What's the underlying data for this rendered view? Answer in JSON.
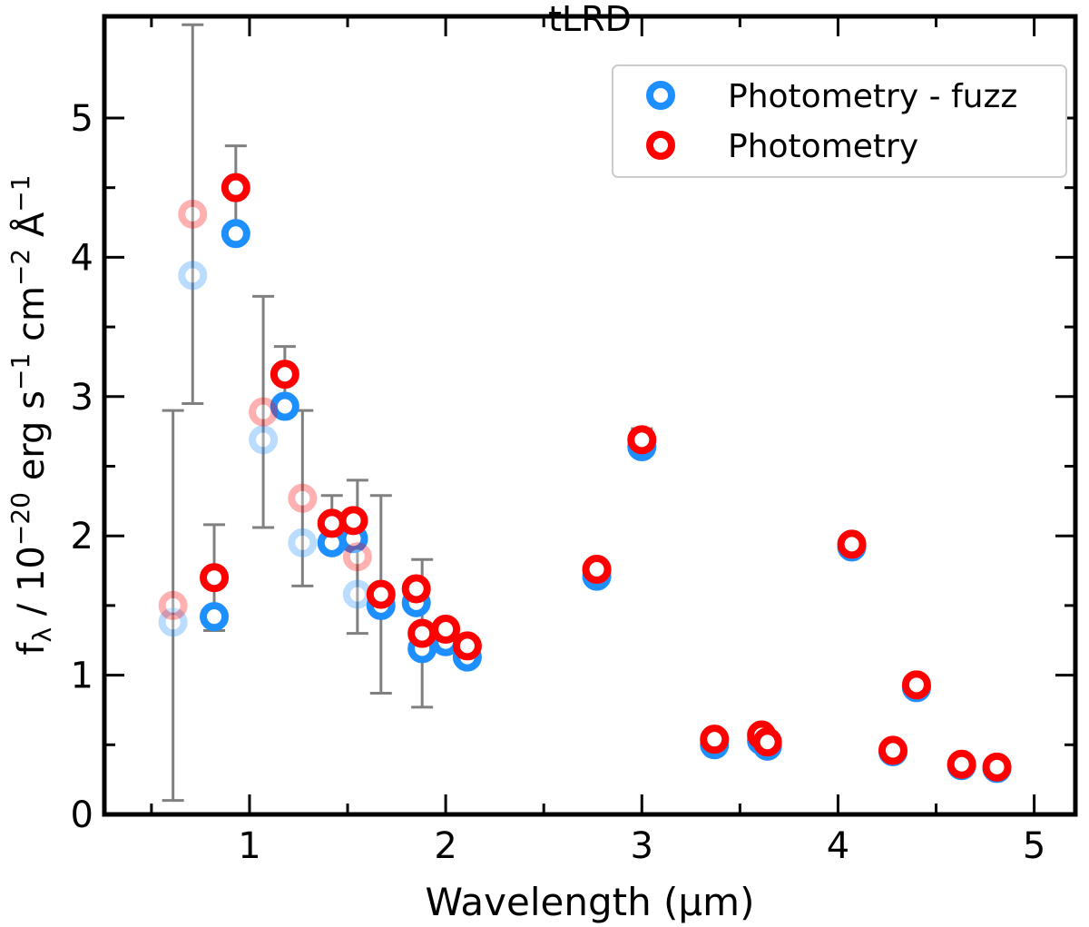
{
  "chart_data": {
    "type": "scatter",
    "title": "tLRD",
    "xlabel": "Wavelength (μm)",
    "ylabel": [
      "f",
      "λ",
      " / 10",
      "−20",
      " erg s",
      "−1",
      " cm",
      "−2",
      " Å",
      "−1"
    ],
    "x": [
      0.61,
      0.71,
      0.82,
      0.93,
      1.07,
      1.18,
      1.27,
      1.42,
      1.53,
      1.55,
      1.67,
      1.85,
      1.88,
      2.0,
      2.11,
      2.77,
      3.0,
      3.37,
      3.61,
      3.64,
      4.07,
      4.4,
      4.28,
      4.63,
      4.81
    ],
    "series": [
      {
        "name": "Photometry - fuzz",
        "color": "#1e8fff",
        "values": [
          1.38,
          3.87,
          1.42,
          4.17,
          2.69,
          2.93,
          1.95,
          1.95,
          1.98,
          1.58,
          1.5,
          1.52,
          1.19,
          1.24,
          1.13,
          1.71,
          2.64,
          0.5,
          0.53,
          0.49,
          1.92,
          0.91,
          0.45,
          0.35,
          0.33
        ],
        "alpha": [
          0.3,
          0.3,
          1,
          1,
          0.3,
          1,
          0.3,
          1,
          1,
          0.3,
          1,
          1,
          1,
          1,
          1,
          1,
          1,
          1,
          1,
          1,
          1,
          1,
          1,
          1,
          1
        ]
      },
      {
        "name": "Photometry",
        "color": "#ff0000",
        "values": [
          1.5,
          4.31,
          1.7,
          4.5,
          2.89,
          3.16,
          2.27,
          2.09,
          2.11,
          1.85,
          1.58,
          1.62,
          1.3,
          1.33,
          1.21,
          1.76,
          2.69,
          0.54,
          0.57,
          0.52,
          1.94,
          0.93,
          0.46,
          0.36,
          0.34
        ],
        "errors": [
          1.4,
          1.36,
          0.38,
          0.3,
          0.83,
          0.2,
          0.63,
          0.2,
          null,
          0.55,
          0.71,
          null,
          0.53,
          null,
          null,
          null,
          0.08,
          null,
          null,
          null,
          null,
          null,
          null,
          null,
          null
        ],
        "alpha": [
          0.3,
          0.3,
          1,
          1,
          0.3,
          1,
          0.3,
          1,
          1,
          0.3,
          1,
          1,
          1,
          1,
          1,
          1,
          1,
          1,
          1,
          1,
          1,
          1,
          1,
          1,
          1
        ]
      }
    ],
    "error_color": "#808080",
    "xlim": [
      0.26,
      5.21
    ],
    "ylim": [
      0,
      5.73
    ],
    "xticks": [
      1,
      2,
      3,
      4,
      5
    ],
    "yticks": [
      0,
      1,
      2,
      3,
      4,
      5
    ],
    "xminorticks": [
      0.5,
      1.5,
      2.5,
      3.5,
      4.5
    ],
    "yminorticks": [
      0.5,
      1.5,
      2.5,
      3.5,
      4.5
    ],
    "legend": "upper right"
  }
}
